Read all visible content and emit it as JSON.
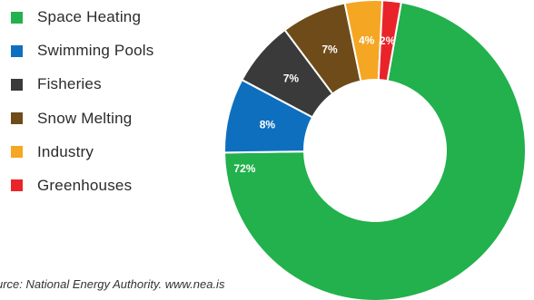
{
  "chart_data": {
    "type": "pie",
    "donut": true,
    "categories": [
      "Space Heating",
      "Swimming Pools",
      "Fisheries",
      "Snow Melting",
      "Industry",
      "Greenhouses"
    ],
    "values": [
      72,
      8,
      7,
      7,
      4,
      2
    ],
    "data_labels": [
      "72%",
      "8%",
      "7%",
      "7%",
      "4%",
      "2%"
    ],
    "colors": [
      "#22b14c",
      "#0f6fbf",
      "#3a3a3a",
      "#6e4b19",
      "#f5a623",
      "#e8242a"
    ],
    "legend_position": "left"
  },
  "source_text": "urce: National Energy Authority. www.nea.is"
}
